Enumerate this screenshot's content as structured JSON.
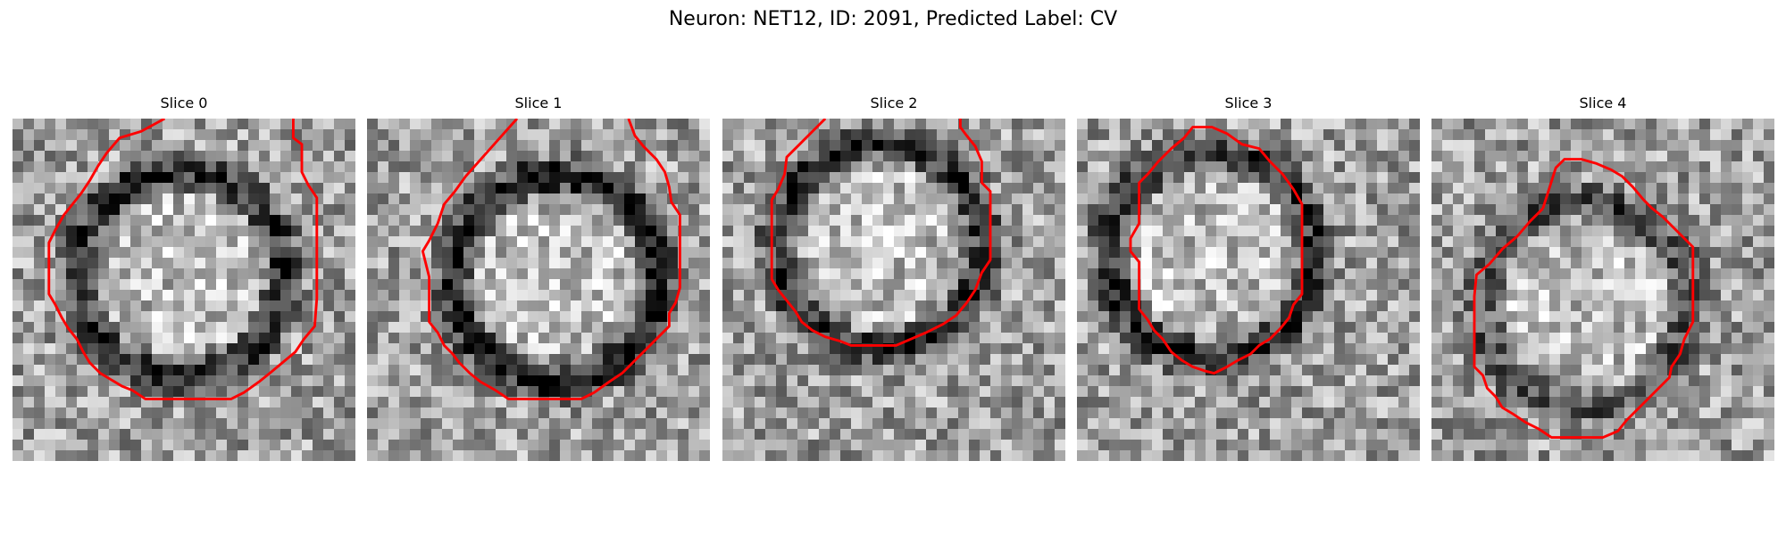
{
  "figure": {
    "suptitle": "Neuron: NET12, ID: 2091, Predicted Label: CV",
    "contour_color": "#ff0000",
    "panels": [
      {
        "title": "Slice 0",
        "dark_ring": "mid",
        "contour": [
          [
            7.1,
            0
          ],
          [
            6.0,
            0.6
          ],
          [
            5.0,
            0.9
          ],
          [
            4.4,
            1.6
          ],
          [
            4.0,
            2.2
          ],
          [
            3.6,
            2.9
          ],
          [
            3.2,
            3.5
          ],
          [
            2.8,
            4.0
          ],
          [
            2.4,
            4.5
          ],
          [
            2.0,
            5.2
          ],
          [
            1.7,
            5.8
          ],
          [
            1.7,
            7.1
          ],
          [
            1.7,
            8.2
          ],
          [
            2.0,
            8.7
          ],
          [
            2.3,
            9.3
          ],
          [
            2.6,
            9.8
          ],
          [
            3.0,
            10.3
          ],
          [
            3.3,
            10.9
          ],
          [
            3.6,
            11.4
          ],
          [
            4.1,
            11.9
          ],
          [
            4.6,
            12.2
          ],
          [
            5.1,
            12.5
          ],
          [
            5.6,
            12.7
          ],
          [
            6.2,
            13.1
          ],
          [
            7.7,
            13.1
          ],
          [
            9.0,
            13.1
          ],
          [
            10.2,
            13.1
          ],
          [
            10.8,
            12.8
          ],
          [
            11.5,
            12.3
          ],
          [
            12.0,
            11.9
          ],
          [
            12.6,
            11.4
          ],
          [
            13.2,
            10.9
          ],
          [
            13.6,
            10.3
          ],
          [
            14.1,
            9.7
          ],
          [
            14.2,
            8.4
          ],
          [
            14.2,
            7.0
          ],
          [
            14.2,
            5.8
          ],
          [
            14.2,
            4.5
          ],
          [
            14.2,
            3.7
          ],
          [
            13.8,
            3.1
          ],
          [
            13.5,
            2.5
          ],
          [
            13.5,
            1.9
          ],
          [
            13.5,
            1.2
          ],
          [
            13.1,
            0.9
          ],
          [
            13.1,
            0
          ]
        ]
      },
      {
        "title": "Slice 1",
        "dark_ring": "high",
        "contour": [
          [
            7.0,
            0
          ],
          [
            6.2,
            0.9
          ],
          [
            5.4,
            1.8
          ],
          [
            4.6,
            2.7
          ],
          [
            4.1,
            3.4
          ],
          [
            3.6,
            4.0
          ],
          [
            3.3,
            4.9
          ],
          [
            2.9,
            5.7
          ],
          [
            2.6,
            6.2
          ],
          [
            2.9,
            7.4
          ],
          [
            2.9,
            8.3
          ],
          [
            2.9,
            9.5
          ],
          [
            3.3,
            10.0
          ],
          [
            3.6,
            10.6
          ],
          [
            4.0,
            11.0
          ],
          [
            4.3,
            11.4
          ],
          [
            4.8,
            11.9
          ],
          [
            5.3,
            12.3
          ],
          [
            6.0,
            12.7
          ],
          [
            6.6,
            13.1
          ],
          [
            7.8,
            13.1
          ],
          [
            8.9,
            13.1
          ],
          [
            10.0,
            13.1
          ],
          [
            10.6,
            12.8
          ],
          [
            11.3,
            12.3
          ],
          [
            11.9,
            11.9
          ],
          [
            12.4,
            11.4
          ],
          [
            12.9,
            10.9
          ],
          [
            13.5,
            10.3
          ],
          [
            14.1,
            9.7
          ],
          [
            14.1,
            9.1
          ],
          [
            14.4,
            8.6
          ],
          [
            14.6,
            7.9
          ],
          [
            14.6,
            6.8
          ],
          [
            14.6,
            5.7
          ],
          [
            14.6,
            4.5
          ],
          [
            14.2,
            3.9
          ],
          [
            14.1,
            3.2
          ],
          [
            13.9,
            2.5
          ],
          [
            13.5,
            1.9
          ],
          [
            12.9,
            1.3
          ],
          [
            12.5,
            0.8
          ],
          [
            12.2,
            0
          ]
        ]
      },
      {
        "title": "Slice 2",
        "dark_ring": "mid",
        "contour": [
          [
            4.8,
            0
          ],
          [
            4.2,
            0.6
          ],
          [
            3.6,
            1.2
          ],
          [
            3.0,
            1.8
          ],
          [
            2.9,
            2.6
          ],
          [
            2.6,
            3.3
          ],
          [
            2.3,
            3.8
          ],
          [
            2.3,
            4.9
          ],
          [
            2.3,
            6.4
          ],
          [
            2.3,
            7.5
          ],
          [
            2.6,
            8.0
          ],
          [
            3.0,
            8.5
          ],
          [
            3.4,
            9.0
          ],
          [
            3.7,
            9.5
          ],
          [
            4.2,
            9.9
          ],
          [
            4.8,
            10.2
          ],
          [
            5.5,
            10.4
          ],
          [
            6.0,
            10.6
          ],
          [
            7.0,
            10.6
          ],
          [
            8.1,
            10.6
          ],
          [
            8.8,
            10.3
          ],
          [
            9.5,
            10.0
          ],
          [
            10.3,
            9.6
          ],
          [
            10.9,
            9.2
          ],
          [
            11.4,
            8.6
          ],
          [
            11.8,
            8.0
          ],
          [
            12.1,
            7.2
          ],
          [
            12.5,
            6.6
          ],
          [
            12.5,
            5.7
          ],
          [
            12.5,
            4.4
          ],
          [
            12.5,
            3.4
          ],
          [
            12.1,
            3.0
          ],
          [
            12.1,
            2.0
          ],
          [
            11.8,
            1.3
          ],
          [
            11.4,
            0.8
          ],
          [
            11.1,
            0.4
          ],
          [
            11.1,
            0
          ]
        ]
      },
      {
        "title": "Slice 3",
        "dark_ring": "mid",
        "contour": [
          [
            5.0,
            0.9
          ],
          [
            4.4,
            1.4
          ],
          [
            3.8,
            2.0
          ],
          [
            3.3,
            2.6
          ],
          [
            2.9,
            3.0
          ],
          [
            2.9,
            3.8
          ],
          [
            2.9,
            4.9
          ],
          [
            2.5,
            5.6
          ],
          [
            2.5,
            6.2
          ],
          [
            2.9,
            6.7
          ],
          [
            2.9,
            7.5
          ],
          [
            2.9,
            8.2
          ],
          [
            2.9,
            8.9
          ],
          [
            3.3,
            9.4
          ],
          [
            3.6,
            9.9
          ],
          [
            4.0,
            10.3
          ],
          [
            4.4,
            10.9
          ],
          [
            4.9,
            11.3
          ],
          [
            5.4,
            11.6
          ],
          [
            6.0,
            11.8
          ],
          [
            6.4,
            11.9
          ],
          [
            7.0,
            11.6
          ],
          [
            7.5,
            11.3
          ],
          [
            8.1,
            11.0
          ],
          [
            8.5,
            10.6
          ],
          [
            9.0,
            10.3
          ],
          [
            9.5,
            9.8
          ],
          [
            9.9,
            9.3
          ],
          [
            10.1,
            8.7
          ],
          [
            10.5,
            8.2
          ],
          [
            10.5,
            7.2
          ],
          [
            10.5,
            6.0
          ],
          [
            10.5,
            4.9
          ],
          [
            10.5,
            4.0
          ],
          [
            10.1,
            3.3
          ],
          [
            9.6,
            2.6
          ],
          [
            9.0,
            2.0
          ],
          [
            8.5,
            1.4
          ],
          [
            7.7,
            1.2
          ],
          [
            7.0,
            0.7
          ],
          [
            6.3,
            0.4
          ],
          [
            5.4,
            0.4
          ],
          [
            5.0,
            0.9
          ]
        ]
      },
      {
        "title": "Slice 4",
        "dark_ring": "low",
        "contour": [
          [
            5.2,
            4.2
          ],
          [
            4.6,
            4.8
          ],
          [
            4.0,
            5.5
          ],
          [
            3.3,
            6.1
          ],
          [
            2.7,
            6.8
          ],
          [
            2.1,
            7.3
          ],
          [
            2.0,
            8.3
          ],
          [
            2.0,
            9.4
          ],
          [
            2.0,
            10.6
          ],
          [
            2.0,
            11.6
          ],
          [
            2.4,
            12.0
          ],
          [
            2.6,
            12.6
          ],
          [
            3.0,
            13.0
          ],
          [
            3.3,
            13.5
          ],
          [
            3.8,
            13.8
          ],
          [
            4.4,
            14.2
          ],
          [
            5.0,
            14.5
          ],
          [
            5.6,
            14.9
          ],
          [
            7.0,
            14.9
          ],
          [
            8.0,
            14.9
          ],
          [
            8.7,
            14.6
          ],
          [
            9.1,
            14.1
          ],
          [
            9.6,
            13.6
          ],
          [
            10.1,
            13.1
          ],
          [
            10.6,
            12.6
          ],
          [
            11.1,
            12.1
          ],
          [
            11.2,
            11.6
          ],
          [
            11.6,
            11.0
          ],
          [
            11.8,
            10.3
          ],
          [
            12.2,
            9.5
          ],
          [
            12.2,
            8.3
          ],
          [
            12.2,
            7.0
          ],
          [
            12.2,
            6.0
          ],
          [
            11.8,
            5.6
          ],
          [
            11.3,
            5.1
          ],
          [
            10.8,
            4.6
          ],
          [
            10.3,
            4.2
          ],
          [
            9.9,
            3.8
          ],
          [
            9.4,
            3.2
          ],
          [
            8.9,
            2.7
          ],
          [
            8.4,
            2.4
          ],
          [
            7.7,
            2.1
          ],
          [
            7.0,
            1.9
          ],
          [
            6.2,
            1.9
          ],
          [
            5.8,
            2.3
          ],
          [
            5.2,
            4.2
          ]
        ]
      }
    ]
  }
}
